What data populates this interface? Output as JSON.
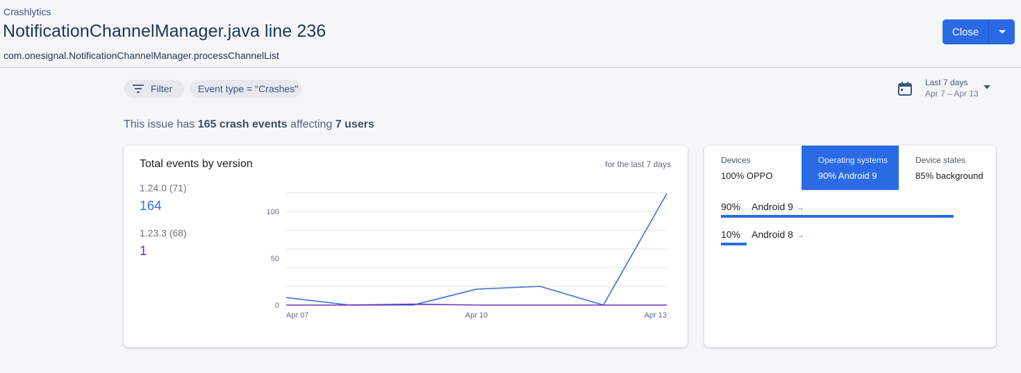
{
  "header": {
    "breadcrumb": "Crashlytics",
    "title": "NotificationChannelManager.java line 236",
    "subtitle": "com.onesignal.NotificationChannelManager.processChannelList",
    "close_label": "Close"
  },
  "filters": {
    "filter_label": "Filter",
    "event_type_chip": "Event type = \"Crashes\""
  },
  "date_range": {
    "label": "Last 7 days",
    "range": "Apr 7 – Apr 13"
  },
  "summary": {
    "prefix": "This issue has",
    "events": "165 crash events",
    "middle": "affecting",
    "users": "7 users"
  },
  "events_card": {
    "title": "Total events by version",
    "note": "for the last 7 days",
    "versions": [
      {
        "label": "1.24.0 (71)",
        "count": "164",
        "color": "#3b6fd8"
      },
      {
        "label": "1.23.3 (68)",
        "count": "1",
        "color": "#6a2ec8"
      }
    ]
  },
  "chart_data": {
    "type": "line",
    "title": "Total events by version",
    "x": [
      "Apr 07",
      "Apr 08",
      "Apr 09",
      "Apr 10",
      "Apr 11",
      "Apr 12",
      "Apr 13"
    ],
    "x_tick_labels": [
      "Apr 07",
      "Apr 10",
      "Apr 13"
    ],
    "y_ticks": [
      0,
      50,
      100
    ],
    "ylim": [
      0,
      120
    ],
    "gridlines": [
      20,
      40,
      60,
      80,
      100,
      120
    ],
    "series": [
      {
        "name": "1.24.0 (71)",
        "color": "#3b6fd8",
        "values": [
          8,
          0,
          0,
          17,
          20,
          0,
          119
        ]
      },
      {
        "name": "1.23.3 (68)",
        "color": "#6a2ec8",
        "values": [
          0,
          0,
          1,
          0,
          0,
          0,
          0
        ]
      }
    ],
    "xlabel": "",
    "ylabel": ""
  },
  "breakdown_card": {
    "tabs": [
      {
        "label": "Devices",
        "value": "100% OPPO",
        "active": false
      },
      {
        "label": "Operating systems",
        "value": "90% Android 9",
        "active": true
      },
      {
        "label": "Device states",
        "value": "85% background",
        "active": false
      }
    ],
    "rows": [
      {
        "pct_label": "90%",
        "name": "Android 9",
        "fraction": 0.9
      },
      {
        "pct_label": "10%",
        "name": "Android 8",
        "fraction": 0.1
      }
    ]
  },
  "colors": {
    "accent": "#2a6be5",
    "series_1": "#3b6fd8",
    "series_2": "#6a2ec8"
  }
}
